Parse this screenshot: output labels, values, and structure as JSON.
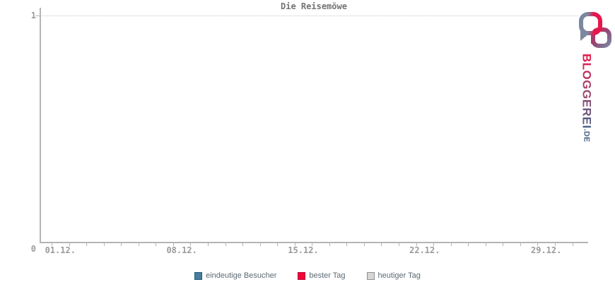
{
  "chart": {
    "title": "Die Reisemöwe",
    "y_labels": [
      "0",
      "1"
    ],
    "x_labels": [
      "01.12.",
      "08.12.",
      "15.12.",
      "22.12.",
      "29.12."
    ],
    "labeled_days": [
      1,
      8,
      15,
      22,
      29
    ],
    "days_in_range": 31
  },
  "chart_data": {
    "type": "bar",
    "title": "Die Reisemöwe",
    "xlabel": "",
    "ylabel": "",
    "ylim": [
      0,
      1
    ],
    "y_ticks": [
      0,
      1
    ],
    "x_tick_labels": [
      "01.12.",
      "08.12.",
      "15.12.",
      "22.12.",
      "29.12."
    ],
    "x_bins": "daily bins 01.12.–31.12.",
    "grid": "dotted horizontal gridline at y=1 only",
    "legend_position": "bottom-center",
    "series": [
      {
        "name": "eindeutige Besucher",
        "color": "#4a7d9b",
        "values": []
      },
      {
        "name": "bester Tag",
        "color": "#f00538",
        "values": []
      },
      {
        "name": "heutiger Tag",
        "color": "#d6d6d6",
        "values": []
      }
    ]
  },
  "legend": {
    "items": [
      {
        "label": "eindeutige Besucher",
        "fill": "#4a7d9b",
        "border": "#1f5a7a"
      },
      {
        "label": "bester Tag",
        "fill": "#f00538",
        "border": "#c00030"
      },
      {
        "label": "heutiger Tag",
        "fill": "#d6d6d6",
        "border": "#909090"
      }
    ]
  },
  "logo": {
    "text": "BLOGGEREI",
    "suffix": ".DE",
    "color_start": "#e31b4c",
    "color_mid": "#99486f",
    "color_end": "#4a6288",
    "icon": "interlocked-speech-bubbles"
  },
  "colors": {
    "axis": "#b4b4b4",
    "tick_labels": "#9b9b9b",
    "title": "#747474",
    "legend_text": "#5c6a73",
    "gridline": "#c9c9c9"
  }
}
